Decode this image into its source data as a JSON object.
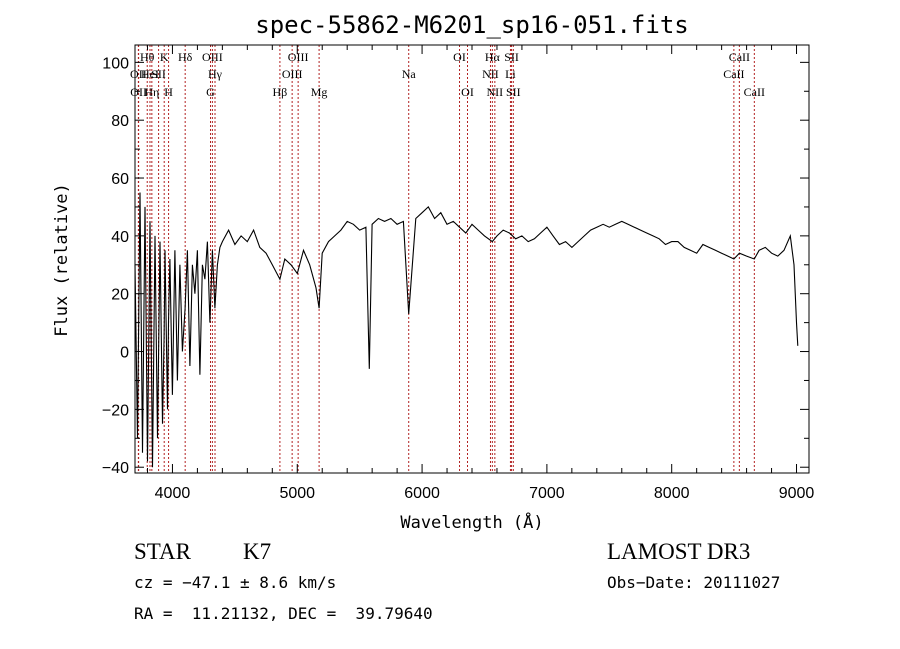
{
  "chart_data": {
    "type": "line",
    "title": "spec-55862-M6201_sp16-051.fits",
    "xlabel": "Wavelength (Å)",
    "ylabel": "Flux (relative)",
    "xlim": [
      3700,
      9100
    ],
    "ylim": [
      -42,
      106
    ],
    "x_ticks": [
      4000,
      5000,
      6000,
      7000,
      8000,
      9000
    ],
    "y_ticks": [
      -40,
      -20,
      0,
      20,
      40,
      60,
      80,
      100
    ],
    "grid": false,
    "line_color": "#000000",
    "marker_color": "#b22222",
    "series": [
      {
        "name": "flux",
        "x": [
          3700,
          3720,
          3740,
          3760,
          3780,
          3800,
          3820,
          3840,
          3860,
          3880,
          3900,
          3920,
          3933,
          3940,
          3960,
          3968,
          3980,
          4000,
          4020,
          4040,
          4060,
          4080,
          4101,
          4120,
          4140,
          4160,
          4180,
          4200,
          4220,
          4240,
          4260,
          4280,
          4300,
          4320,
          4340,
          4360,
          4380,
          4400,
          4450,
          4500,
          4550,
          4600,
          4650,
          4700,
          4750,
          4800,
          4861,
          4900,
          4950,
          5000,
          5050,
          5100,
          5150,
          5175,
          5200,
          5250,
          5300,
          5350,
          5400,
          5450,
          5500,
          5550,
          5577,
          5600,
          5650,
          5700,
          5750,
          5800,
          5850,
          5893,
          5950,
          6000,
          6050,
          6100,
          6150,
          6200,
          6250,
          6300,
          6350,
          6400,
          6450,
          6500,
          6563,
          6600,
          6650,
          6700,
          6750,
          6800,
          6850,
          6900,
          6950,
          7000,
          7050,
          7100,
          7150,
          7200,
          7250,
          7300,
          7350,
          7400,
          7450,
          7500,
          7550,
          7600,
          7650,
          7700,
          7750,
          7800,
          7850,
          7900,
          7950,
          8000,
          8050,
          8100,
          8150,
          8200,
          8250,
          8300,
          8350,
          8400,
          8450,
          8498,
          8542,
          8600,
          8662,
          8700,
          8750,
          8800,
          8850,
          8900,
          8950,
          8980,
          9000,
          9010
        ],
        "values": [
          30,
          -30,
          55,
          -35,
          50,
          -38,
          45,
          -40,
          40,
          -30,
          38,
          -25,
          5,
          35,
          -20,
          10,
          32,
          -15,
          35,
          -10,
          30,
          0,
          15,
          35,
          -5,
          30,
          20,
          35,
          -8,
          30,
          25,
          38,
          10,
          35,
          15,
          30,
          36,
          38,
          42,
          37,
          40,
          38,
          42,
          36,
          34,
          30,
          25,
          32,
          30,
          27,
          35,
          30,
          22,
          15,
          34,
          38,
          40,
          42,
          45,
          44,
          42,
          43,
          -6,
          44,
          46,
          45,
          46,
          44,
          45,
          13,
          46,
          48,
          50,
          46,
          48,
          44,
          45,
          43,
          41,
          44,
          42,
          40,
          38,
          40,
          42,
          41,
          39,
          40,
          38,
          39,
          41,
          43,
          40,
          37,
          38,
          36,
          38,
          40,
          42,
          43,
          44,
          43,
          44,
          45,
          44,
          43,
          42,
          41,
          40,
          39,
          37,
          38,
          38,
          36,
          35,
          34,
          37,
          36,
          35,
          34,
          33,
          32,
          34,
          33,
          32,
          35,
          36,
          34,
          33,
          35,
          40,
          30,
          10,
          2
        ]
      }
    ],
    "lines": [
      {
        "name": "OII",
        "x": 3727,
        "row": 2
      },
      {
        "name": "OII",
        "x": 3729,
        "row": 3
      },
      {
        "name": "Hθ",
        "x": 3798,
        "row": 1
      },
      {
        "name": "HeI",
        "x": 3820,
        "row": 2
      },
      {
        "name": "Hη",
        "x": 3835,
        "row": 3
      },
      {
        "name": "SII",
        "x": 3889,
        "row": 2
      },
      {
        "name": "K",
        "x": 3934,
        "row": 1
      },
      {
        "name": "H",
        "x": 3969,
        "row": 3
      },
      {
        "name": "Hδ",
        "x": 4102,
        "row": 1
      },
      {
        "name": "G",
        "x": 4305,
        "row": 3
      },
      {
        "name": "OIII",
        "x": 4320,
        "row": 1
      },
      {
        "name": "Hγ",
        "x": 4341,
        "row": 2
      },
      {
        "name": "Hβ",
        "x": 4861,
        "row": 3
      },
      {
        "name": "OIII",
        "x": 4959,
        "row": 2
      },
      {
        "name": "OIII",
        "x": 5007,
        "row": 1
      },
      {
        "name": "Mg",
        "x": 5175,
        "row": 3
      },
      {
        "name": "Na",
        "x": 5893,
        "row": 2
      },
      {
        "name": "OI",
        "x": 6300,
        "row": 1
      },
      {
        "name": "OI",
        "x": 6364,
        "row": 3
      },
      {
        "name": "NII",
        "x": 6548,
        "row": 2
      },
      {
        "name": "Hα",
        "x": 6563,
        "row": 1
      },
      {
        "name": "NII",
        "x": 6583,
        "row": 3
      },
      {
        "name": "SII",
        "x": 6717,
        "row": 1
      },
      {
        "name": "Li",
        "x": 6708,
        "row": 2
      },
      {
        "name": "SII",
        "x": 6731,
        "row": 3
      },
      {
        "name": "CaII",
        "x": 8498,
        "row": 2
      },
      {
        "name": "CaII",
        "x": 8542,
        "row": 1
      },
      {
        "name": "CaII",
        "x": 8662,
        "row": 3
      }
    ]
  },
  "info": {
    "class": "STAR",
    "subclass": "K7",
    "survey": "LAMOST DR3",
    "cz": "cz = −47.1 ± 8.6 km/s",
    "obs_date": "Obs−Date: 20111027",
    "radec": "RA =  11.21132, DEC =  39.79640"
  }
}
